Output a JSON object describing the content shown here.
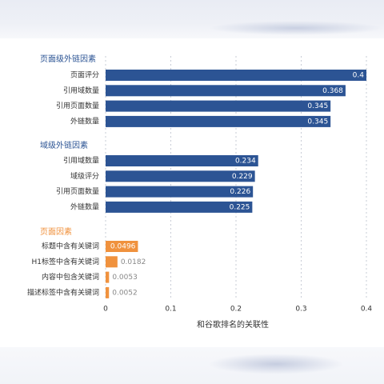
{
  "chart_data": {
    "type": "bar",
    "orientation": "horizontal",
    "title": "",
    "xlabel": "和谷歌排名的关联性",
    "ylabel": "",
    "xlim": [
      0,
      0.4
    ],
    "xticks": [
      "0",
      "0.1",
      "0.2",
      "0.3",
      "0.4"
    ],
    "grid": "vertical dashed",
    "groups": [
      {
        "name": "页面级外链因素",
        "color": "#2c5494",
        "items": [
          {
            "label": "页面评分",
            "value": 0.4,
            "value_label": "0.4"
          },
          {
            "label": "引用域数量",
            "value": 0.368,
            "value_label": "0.368"
          },
          {
            "label": "引用页面数量",
            "value": 0.345,
            "value_label": "0.345"
          },
          {
            "label": "外链数量",
            "value": 0.345,
            "value_label": "0.345"
          }
        ]
      },
      {
        "name": "域级外链因素",
        "color": "#2c5494",
        "items": [
          {
            "label": "引用域数量",
            "value": 0.234,
            "value_label": "0.234"
          },
          {
            "label": "域级评分",
            "value": 0.229,
            "value_label": "0.229"
          },
          {
            "label": "引用页面数量",
            "value": 0.226,
            "value_label": "0.226"
          },
          {
            "label": "外链数量",
            "value": 0.225,
            "value_label": "0.225"
          }
        ]
      },
      {
        "name": "页面因素",
        "color": "#f0923e",
        "items": [
          {
            "label": "标题中含有关键词",
            "value": 0.0496,
            "value_label": "0.0496"
          },
          {
            "label": "H1标签中含有关键词",
            "value": 0.0182,
            "value_label": "0.0182"
          },
          {
            "label": "内容中包含关键词",
            "value": 0.0053,
            "value_label": "0.0053"
          },
          {
            "label": "描述标签中含有关键词",
            "value": 0.0052,
            "value_label": "0.0052"
          }
        ]
      }
    ]
  },
  "colors": {
    "bar_primary": "#2c5494",
    "bar_secondary": "#f0923e",
    "group_title_primary": "#2c5494",
    "group_title_secondary": "#f0923e",
    "grid": "#c8ccd6",
    "text": "#333333",
    "muted": "#888888"
  }
}
